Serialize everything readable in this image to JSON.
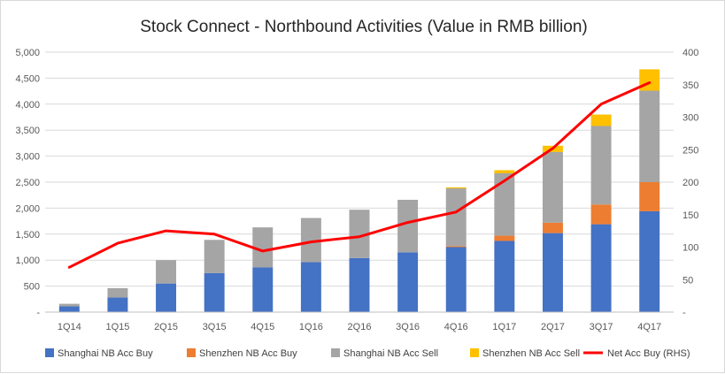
{
  "chart_data": {
    "type": "bar",
    "stacked": true,
    "title": "Stock Connect - Northbound Activities (Value in RMB billion)",
    "categories": [
      "1Q14",
      "1Q15",
      "2Q15",
      "3Q15",
      "4Q15",
      "1Q16",
      "2Q16",
      "3Q16",
      "4Q16",
      "1Q17",
      "2Q17",
      "3Q17",
      "4Q17"
    ],
    "ylim": [
      0,
      5000
    ],
    "y_ticks": [
      "-",
      "500",
      "1,000",
      "1,500",
      "2,000",
      "2,500",
      "3,000",
      "3,500",
      "4,000",
      "4,500",
      "5,000"
    ],
    "y2lim": [
      0,
      400
    ],
    "y2_ticks": [
      "-",
      "50",
      "100",
      "150",
      "200",
      "250",
      "300",
      "350",
      "400"
    ],
    "grid": true,
    "legend_position": "bottom",
    "series": [
      {
        "name": "Shanghai NB Acc Buy",
        "type": "bar",
        "color": "#4472C4",
        "values": [
          110,
          280,
          550,
          750,
          860,
          960,
          1040,
          1150,
          1250,
          1370,
          1520,
          1690,
          1940
        ]
      },
      {
        "name": "Shenzhen NB Acc Buy",
        "type": "bar",
        "color": "#ED7D31",
        "values": [
          0,
          0,
          0,
          0,
          0,
          0,
          0,
          0,
          20,
          100,
          200,
          380,
          560
        ]
      },
      {
        "name": "Shanghai NB Acc Sell",
        "type": "bar",
        "color": "#A5A5A5",
        "values": [
          50,
          180,
          450,
          640,
          770,
          850,
          930,
          1010,
          1110,
          1200,
          1360,
          1510,
          1760
        ]
      },
      {
        "name": "Shenzhen NB Acc Sell",
        "type": "bar",
        "color": "#FFC000",
        "values": [
          0,
          0,
          0,
          0,
          0,
          0,
          0,
          0,
          20,
          60,
          120,
          220,
          410
        ]
      },
      {
        "name": "Net Acc Buy (RHS)",
        "type": "line",
        "axis": "right",
        "color": "#FF0000",
        "values": [
          69,
          106,
          125,
          120,
          94,
          108,
          116,
          138,
          154,
          202,
          252,
          320,
          353
        ]
      }
    ]
  }
}
